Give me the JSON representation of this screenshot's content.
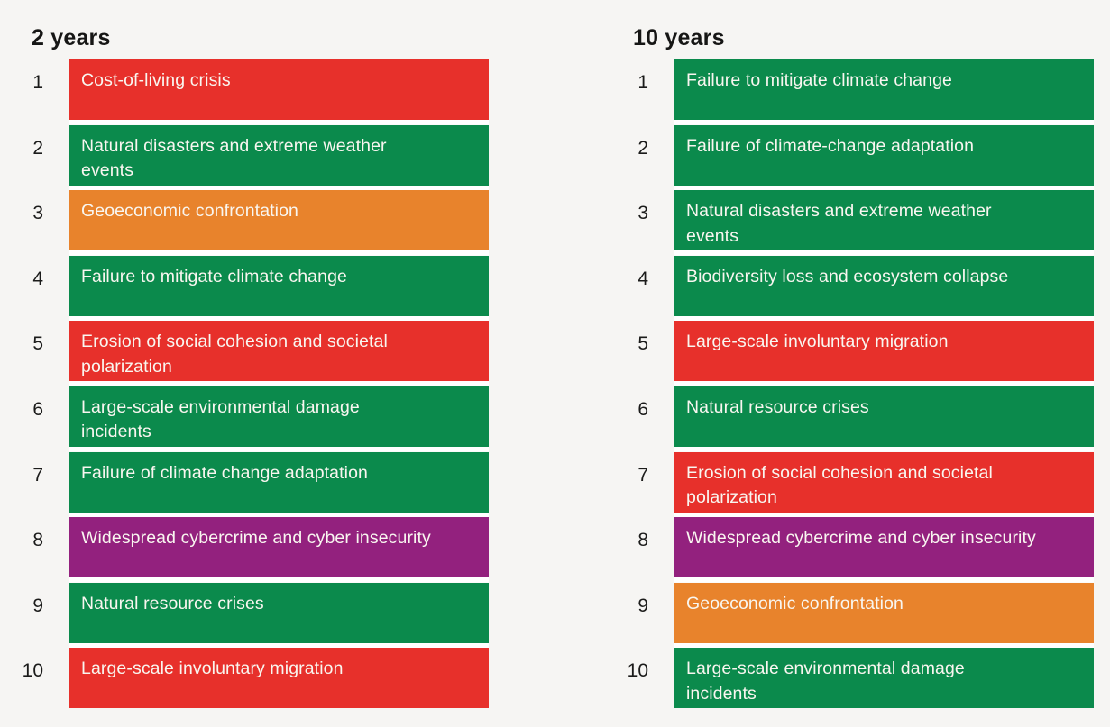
{
  "page": {
    "background_color": "#F6F5F3",
    "gap_color": "#FFFFFF",
    "header_text_color": "#161615",
    "rank_text_color": "#1B1B1A",
    "bar_text_color": "#F9F6F0"
  },
  "chart_data": {
    "type": "table",
    "description": "Two ranked top-10 risk lists over the short term (2 years) and long term (10 years), bars colored by risk category",
    "legend_position": "none",
    "category_colors": {
      "societal": "#E7302B",
      "environmental": "#0B8A4C",
      "geopolitical": "#E8832C",
      "technological": "#93217E"
    },
    "columns": [
      {
        "title": "2 years",
        "items": [
          {
            "rank": "1",
            "label": "Cost-of-living crisis",
            "category": "societal"
          },
          {
            "rank": "2",
            "label": "Natural disasters and extreme weather\nevents",
            "category": "environmental"
          },
          {
            "rank": "3",
            "label": "Geoeconomic confrontation",
            "category": "geopolitical"
          },
          {
            "rank": "4",
            "label": "Failure to mitigate climate change",
            "category": "environmental"
          },
          {
            "rank": "5",
            "label": "Erosion of social cohesion and societal\npolarization",
            "category": "societal"
          },
          {
            "rank": "6",
            "label": "Large-scale environmental damage\nincidents",
            "category": "environmental"
          },
          {
            "rank": "7",
            "label": "Failure of climate change adaptation",
            "category": "environmental"
          },
          {
            "rank": "8",
            "label": "Widespread cybercrime and cyber insecurity",
            "category": "technological"
          },
          {
            "rank": "9",
            "label": "Natural resource crises",
            "category": "environmental"
          },
          {
            "rank": "10",
            "label": "Large-scale involuntary migration",
            "category": "societal"
          }
        ]
      },
      {
        "title": "10 years",
        "items": [
          {
            "rank": "1",
            "label": "Failure to mitigate climate change",
            "category": "environmental"
          },
          {
            "rank": "2",
            "label": "Failure of climate-change adaptation",
            "category": "environmental"
          },
          {
            "rank": "3",
            "label": "Natural disasters and extreme weather\nevents",
            "category": "environmental"
          },
          {
            "rank": "4",
            "label": "Biodiversity loss and ecosystem collapse",
            "category": "environmental"
          },
          {
            "rank": "5",
            "label": "Large-scale involuntary migration",
            "category": "societal"
          },
          {
            "rank": "6",
            "label": "Natural resource crises",
            "category": "environmental"
          },
          {
            "rank": "7",
            "label": "Erosion of social cohesion and societal\npolarization",
            "category": "societal"
          },
          {
            "rank": "8",
            "label": "Widespread cybercrime and cyber insecurity",
            "category": "technological"
          },
          {
            "rank": "9",
            "label": "Geoeconomic confrontation",
            "category": "geopolitical"
          },
          {
            "rank": "10",
            "label": "Large-scale environmental damage\nincidents",
            "category": "environmental"
          }
        ]
      }
    ]
  }
}
